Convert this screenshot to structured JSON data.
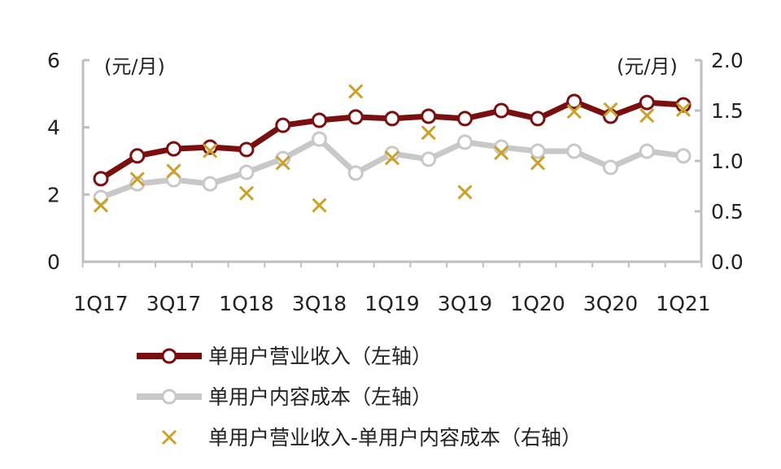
{
  "chart_data": {
    "type": "line",
    "categories": [
      "1Q17",
      "2Q17",
      "3Q17",
      "4Q17",
      "1Q18",
      "2Q18",
      "3Q18",
      "4Q18",
      "1Q19",
      "2Q19",
      "3Q19",
      "4Q19",
      "1Q20",
      "2Q20",
      "3Q20",
      "4Q20",
      "1Q21"
    ],
    "x_tick_labels": [
      "1Q17",
      "3Q17",
      "1Q18",
      "3Q18",
      "1Q19",
      "3Q19",
      "1Q20",
      "3Q20",
      "1Q21"
    ],
    "left_axis": {
      "unit_label": "(元/月)",
      "ylim": [
        0,
        6
      ],
      "ticks": [
        "0",
        "2",
        "4",
        "6"
      ]
    },
    "right_axis": {
      "unit_label": "(元/月)",
      "ylim": [
        0,
        2.0
      ],
      "ticks": [
        "0.0",
        "0.5",
        "1.0",
        "1.5",
        "2.0"
      ]
    },
    "grid": false,
    "legend_placement": "bottom",
    "series": [
      {
        "name": "单用户营业收入（左轴）",
        "axis": "left",
        "style": "line-circle",
        "color": "#7a0f10",
        "values": [
          2.47,
          3.15,
          3.36,
          3.41,
          3.34,
          4.06,
          4.21,
          4.31,
          4.26,
          4.33,
          4.26,
          4.5,
          4.26,
          4.77,
          4.33,
          4.74,
          4.67
        ]
      },
      {
        "name": "单用户内容成本（左轴）",
        "axis": "left",
        "style": "line-circle",
        "color": "#c8c8c8",
        "values": [
          1.91,
          2.32,
          2.44,
          2.32,
          2.66,
          3.07,
          3.65,
          2.64,
          3.22,
          3.05,
          3.56,
          3.41,
          3.29,
          3.29,
          2.81,
          3.29,
          3.15
        ]
      },
      {
        "name": "单用户营业收入-单用户内容成本（右轴）",
        "axis": "right",
        "style": "x-marker",
        "color": "#c9a227",
        "values": [
          0.56,
          0.82,
          0.9,
          1.1,
          0.68,
          0.98,
          0.56,
          1.69,
          1.03,
          1.28,
          0.69,
          1.08,
          0.98,
          1.49,
          1.51,
          1.45,
          1.51
        ]
      }
    ]
  }
}
